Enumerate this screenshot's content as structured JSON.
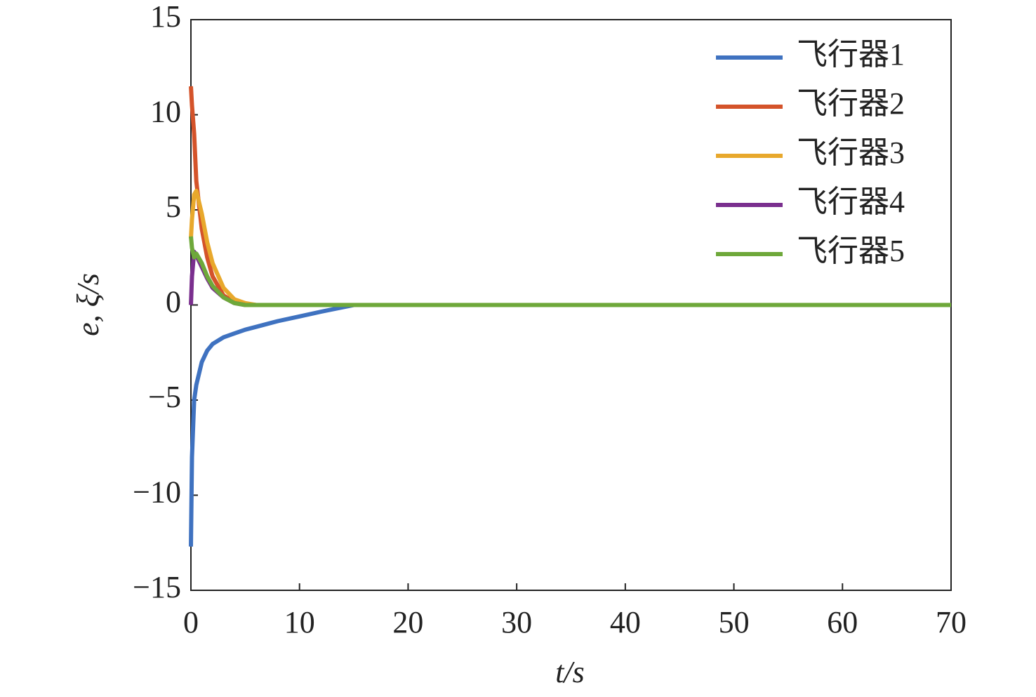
{
  "chart_data": {
    "type": "line",
    "xlabel": "t/s",
    "ylabel": "e, ξ/s",
    "x": [
      0,
      0.1,
      0.3,
      0.5,
      1,
      1.5,
      2,
      3,
      4,
      5,
      6,
      8,
      10,
      12,
      15,
      20,
      30,
      40,
      50,
      60,
      70
    ],
    "series": [
      {
        "name": "飞行器1",
        "color": "#3f72c0",
        "values": [
          -12.7,
          -8,
          -5,
          -4.2,
          -3,
          -2.4,
          -2.05,
          -1.7,
          -1.5,
          -1.3,
          -1.15,
          -0.85,
          -0.6,
          -0.35,
          0,
          0,
          0,
          0,
          0,
          0,
          0
        ]
      },
      {
        "name": "飞行器2",
        "color": "#d4532a",
        "values": [
          11.5,
          10.5,
          9,
          6.5,
          4,
          2.5,
          1.5,
          0.5,
          0.15,
          0.05,
          0,
          0,
          0,
          0,
          0,
          0,
          0,
          0,
          0,
          0,
          0
        ]
      },
      {
        "name": "飞行器3",
        "color": "#e8a82c",
        "values": [
          3.5,
          4.5,
          5.8,
          6,
          4.8,
          3.3,
          2.2,
          0.9,
          0.3,
          0.1,
          0,
          0,
          0,
          0,
          0,
          0,
          0,
          0,
          0,
          0,
          0
        ]
      },
      {
        "name": "飞行器4",
        "color": "#7a2f8e",
        "values": [
          0,
          1.5,
          2.8,
          2.6,
          2,
          1.4,
          0.9,
          0.4,
          0.1,
          0,
          0,
          0,
          0,
          0,
          0,
          0,
          0,
          0,
          0,
          0,
          0
        ]
      },
      {
        "name": "飞行器5",
        "color": "#6ea83a",
        "values": [
          3.6,
          3,
          2.5,
          2.7,
          2.2,
          1.5,
          1.0,
          0.4,
          0.1,
          0,
          0,
          0,
          0,
          0,
          0,
          0,
          0,
          0,
          0,
          0,
          0
        ]
      }
    ],
    "xlim": [
      0,
      70
    ],
    "xticks": [
      0,
      10,
      20,
      30,
      40,
      50,
      60,
      70
    ],
    "ylim": [
      -15,
      15
    ],
    "yticks": [
      {
        "value": -15,
        "label": "−15"
      },
      {
        "value": -10,
        "label": "−10"
      },
      {
        "value": -5,
        "label": "−5"
      },
      0,
      5,
      10,
      15
    ],
    "grid": false,
    "legend": "upper right"
  }
}
